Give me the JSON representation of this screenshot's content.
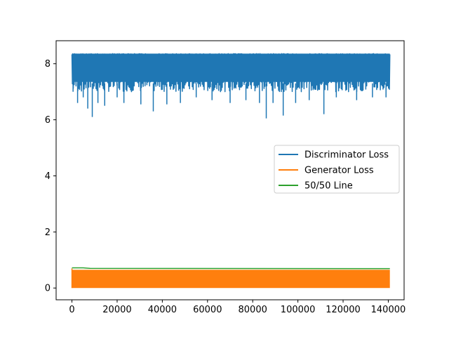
{
  "chart_data": {
    "type": "line",
    "title": "",
    "xlabel": "",
    "ylabel": "",
    "xlim": [
      -7000,
      147000
    ],
    "ylim": [
      -0.42,
      8.82
    ],
    "x_ticks": [
      0,
      20000,
      40000,
      60000,
      80000,
      100000,
      120000,
      140000
    ],
    "x_tick_labels": [
      "0",
      "20000",
      "40000",
      "60000",
      "80000",
      "100000",
      "120000",
      "140000"
    ],
    "y_ticks": [
      0,
      2,
      4,
      6,
      8
    ],
    "y_tick_labels": [
      "0",
      "2",
      "4",
      "6",
      "8"
    ],
    "grid": false,
    "legend_position": "center-right",
    "x_range": [
      0,
      140700
    ],
    "series": [
      {
        "name": "Discriminator Loss",
        "color": "#1f77b4",
        "style": "noisy-band",
        "upper": 8.36,
        "typical_lower": 7.0,
        "dips": [
          {
            "x": 500,
            "y": 7.0
          },
          {
            "x": 2500,
            "y": 6.6
          },
          {
            "x": 5000,
            "y": 6.8
          },
          {
            "x": 7000,
            "y": 6.4
          },
          {
            "x": 9000,
            "y": 6.1
          },
          {
            "x": 11500,
            "y": 6.6
          },
          {
            "x": 14500,
            "y": 6.5
          },
          {
            "x": 20000,
            "y": 6.8
          },
          {
            "x": 23000,
            "y": 6.6
          },
          {
            "x": 30500,
            "y": 6.55
          },
          {
            "x": 36000,
            "y": 6.3
          },
          {
            "x": 42000,
            "y": 6.55
          },
          {
            "x": 48000,
            "y": 6.6
          },
          {
            "x": 55000,
            "y": 6.8
          },
          {
            "x": 62000,
            "y": 6.7
          },
          {
            "x": 70000,
            "y": 6.6
          },
          {
            "x": 77000,
            "y": 6.7
          },
          {
            "x": 83000,
            "y": 6.6
          },
          {
            "x": 86000,
            "y": 6.05
          },
          {
            "x": 89000,
            "y": 6.6
          },
          {
            "x": 93500,
            "y": 6.15
          },
          {
            "x": 99000,
            "y": 6.6
          },
          {
            "x": 105000,
            "y": 6.7
          },
          {
            "x": 111500,
            "y": 6.2
          },
          {
            "x": 117000,
            "y": 6.8
          },
          {
            "x": 126000,
            "y": 6.7
          },
          {
            "x": 133000,
            "y": 6.8
          },
          {
            "x": 139000,
            "y": 6.8
          }
        ]
      },
      {
        "name": "Generator Loss",
        "color": "#ff7f0e",
        "style": "filled-band",
        "lower": 0.0,
        "upper": 0.65
      },
      {
        "name": "50/50 Line",
        "color": "#2ca02c",
        "style": "line",
        "points": [
          [
            0,
            0.72
          ],
          [
            5000,
            0.72
          ],
          [
            8000,
            0.7
          ],
          [
            140700,
            0.69
          ]
        ]
      }
    ]
  }
}
